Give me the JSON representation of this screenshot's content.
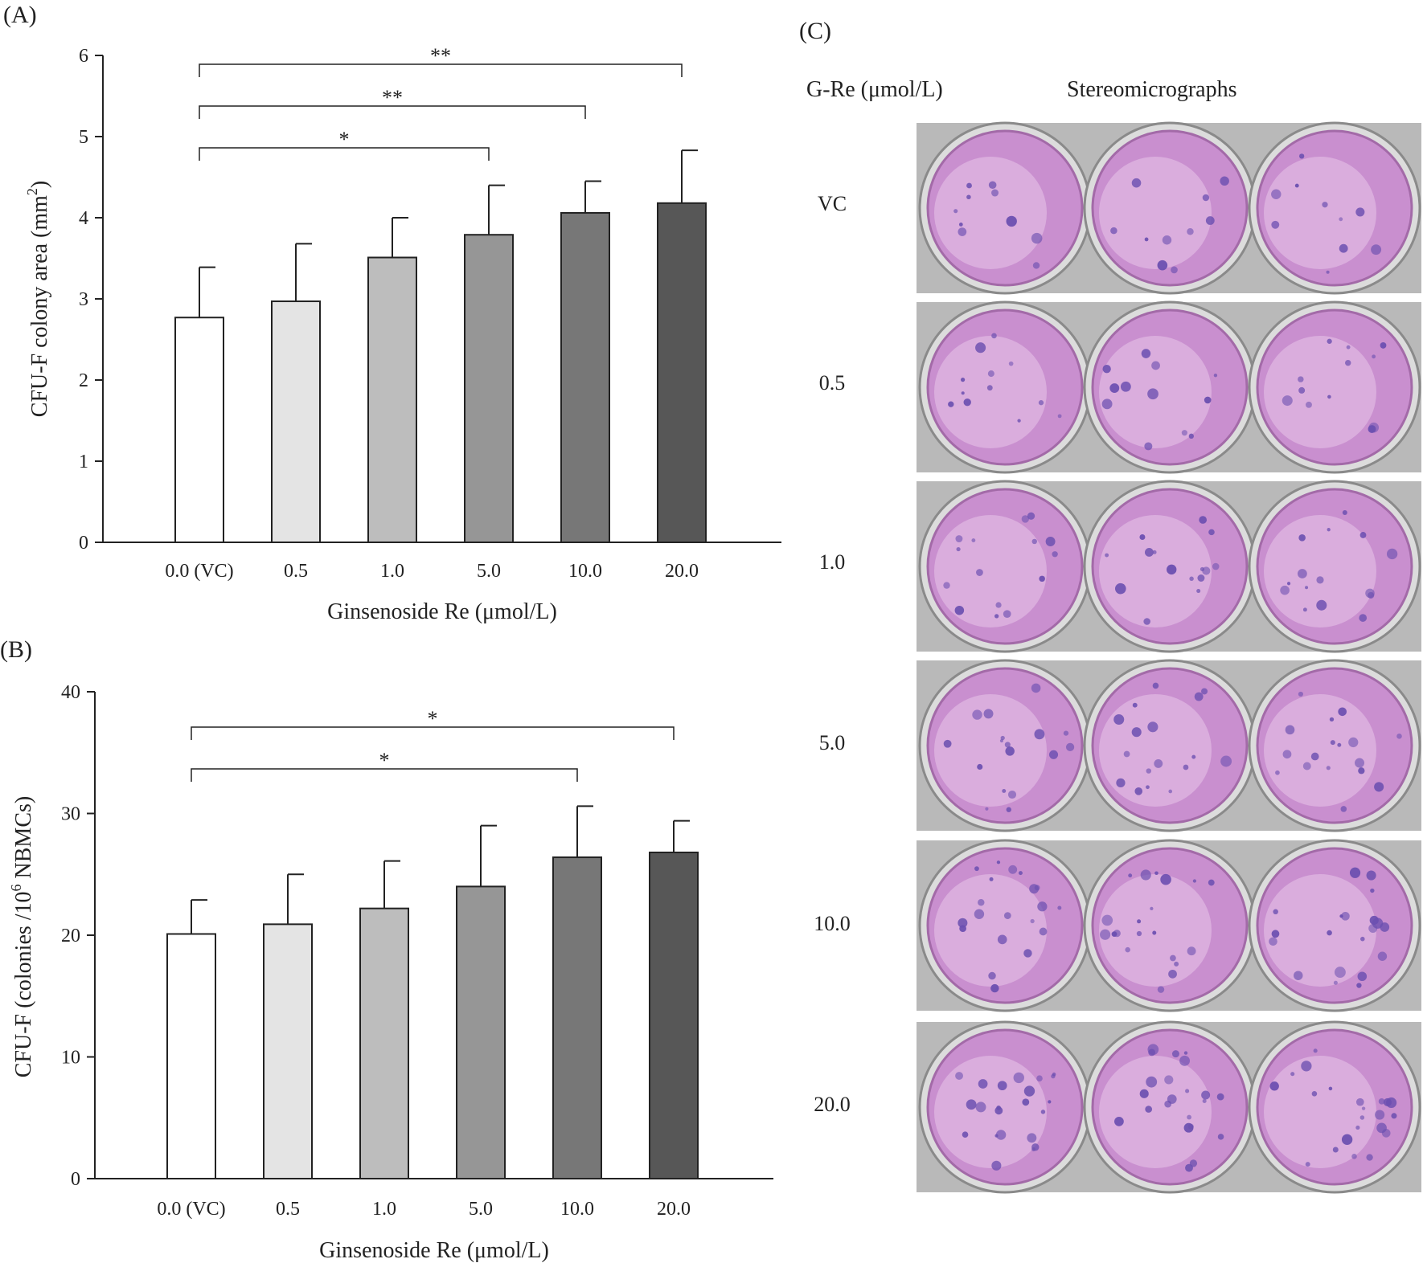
{
  "chart_data": [
    {
      "panel_label": "(A)",
      "type": "bar",
      "categories": [
        "0.0 (VC)",
        "0.5",
        "1.0",
        "5.0",
        "10.0",
        "20.0"
      ],
      "values": [
        2.77,
        2.97,
        3.51,
        3.79,
        4.06,
        4.18
      ],
      "errors": [
        0.62,
        0.71,
        0.49,
        0.61,
        0.39,
        0.65
      ],
      "bar_colors": [
        "#ffffff",
        "#e4e4e4",
        "#bdbdbd",
        "#969696",
        "#777777",
        "#575757"
      ],
      "xlabel": "Ginsenoside Re (μmol/L)",
      "ylabel": "CFU-F colony area (mm",
      "ylabel_sup": "2",
      "ylabel_suffix": ")",
      "ylim": [
        0,
        6
      ],
      "yticks": [
        "0",
        "1",
        "2",
        "3",
        "4",
        "5",
        "6"
      ],
      "significance": [
        {
          "from": 0,
          "to": 3,
          "label": "*"
        },
        {
          "from": 0,
          "to": 4,
          "label": "**"
        },
        {
          "from": 0,
          "to": 5,
          "label": "**"
        }
      ]
    },
    {
      "panel_label": "(B)",
      "type": "bar",
      "categories": [
        "0.0 (VC)",
        "0.5",
        "1.0",
        "5.0",
        "10.0",
        "20.0"
      ],
      "values": [
        20.1,
        20.9,
        22.2,
        24.0,
        26.4,
        26.8
      ],
      "errors": [
        2.8,
        4.1,
        3.9,
        5.0,
        4.2,
        2.6
      ],
      "bar_colors": [
        "#ffffff",
        "#e4e4e4",
        "#bdbdbd",
        "#969696",
        "#777777",
        "#575757"
      ],
      "xlabel": "Ginsenoside Re (μmol/L)",
      "ylabel": "CFU-F (colonies /10",
      "ylabel_sup": "6",
      "ylabel_suffix": " NBMCs)",
      "ylim": [
        0,
        40
      ],
      "yticks": [
        "0",
        "10",
        "20",
        "30",
        "40"
      ],
      "significance": [
        {
          "from": 0,
          "to": 4,
          "label": "*"
        },
        {
          "from": 0,
          "to": 5,
          "label": "*"
        }
      ]
    }
  ],
  "panel_c": {
    "panel_label": "(C)",
    "col_header_left": "G-Re (μmol/L)",
    "col_header_right": "Stereomicrographs",
    "rows": [
      "VC",
      "0.5",
      "1.0",
      "5.0",
      "10.0",
      "20.0"
    ]
  },
  "colors": {
    "well_stain": "#c98fcf",
    "colony": "#6b4fb0",
    "plate_bg": "#b9b9b9"
  }
}
